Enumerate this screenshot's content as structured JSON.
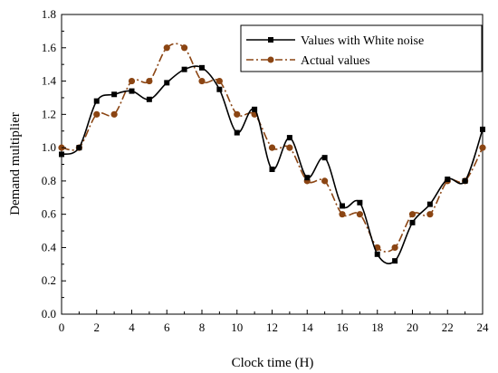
{
  "chart_data": {
    "type": "line",
    "xlabel": "Clock time (H)",
    "ylabel": "Demand multiplier",
    "xlim": [
      0,
      24
    ],
    "ylim": [
      0,
      1.8
    ],
    "xticks": [
      0,
      2,
      4,
      6,
      8,
      10,
      12,
      14,
      16,
      18,
      20,
      22,
      24
    ],
    "yticks": [
      0.0,
      0.2,
      0.4,
      0.6,
      0.8,
      1.0,
      1.2,
      1.4,
      1.6,
      1.8
    ],
    "ytick_labels": [
      "0.0",
      "0.2",
      "0.4",
      "0.6",
      "0.8",
      "1.0",
      "1.2",
      "1.4",
      "1.6",
      "1.8"
    ],
    "grid": false,
    "legend_position": "top-right",
    "x": [
      0,
      1,
      2,
      3,
      4,
      5,
      6,
      7,
      8,
      9,
      10,
      11,
      12,
      13,
      14,
      15,
      16,
      17,
      18,
      19,
      20,
      21,
      22,
      23,
      24
    ],
    "series": [
      {
        "name": "Values with White noise",
        "color": "#000000",
        "marker": "square",
        "line_style": "solid",
        "values": [
          0.96,
          1.0,
          1.28,
          1.32,
          1.34,
          1.29,
          1.39,
          1.47,
          1.48,
          1.35,
          1.09,
          1.23,
          0.87,
          1.06,
          0.82,
          0.94,
          0.65,
          0.67,
          0.36,
          0.32,
          0.55,
          0.66,
          0.81,
          0.8,
          1.11
        ]
      },
      {
        "name": "Actual values",
        "color": "#8B4513",
        "marker": "circle",
        "line_style": "dashdot",
        "values": [
          1.0,
          1.0,
          1.2,
          1.2,
          1.4,
          1.4,
          1.6,
          1.6,
          1.4,
          1.4,
          1.2,
          1.2,
          1.0,
          1.0,
          0.8,
          0.8,
          0.6,
          0.6,
          0.4,
          0.4,
          0.6,
          0.6,
          0.8,
          0.8,
          1.0
        ]
      }
    ]
  }
}
